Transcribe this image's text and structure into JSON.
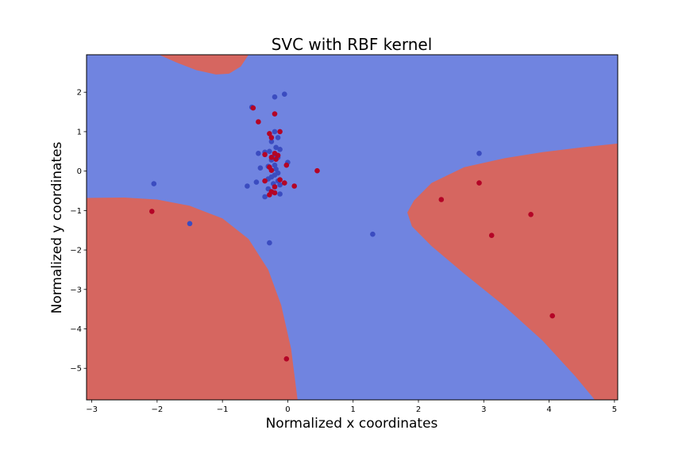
{
  "chart_data": {
    "type": "scatter",
    "title": "SVC with RBF kernel",
    "xlabel": "Normalized x coordinates",
    "ylabel": "Normalized y coordinates",
    "xlim": [
      -3.08,
      5.05
    ],
    "ylim": [
      -5.8,
      2.95
    ],
    "xticks": [
      -3,
      -2,
      -1,
      0,
      1,
      2,
      3,
      4,
      5
    ],
    "yticks": [
      -5,
      -4,
      -3,
      -2,
      -1,
      0,
      1,
      2
    ],
    "grid": false,
    "legend": "none",
    "colors": {
      "region_class_0": "#7084e0",
      "region_class_1": "#d66660",
      "point_class_0": "#3b4cc0",
      "point_class_1": "#b40426"
    },
    "decision_regions": [
      {
        "class": 1,
        "name": "top-left lobe",
        "boundary": [
          [
            -1.97,
            2.95
          ],
          [
            -1.7,
            2.75
          ],
          [
            -1.4,
            2.56
          ],
          [
            -1.1,
            2.45
          ],
          [
            -0.9,
            2.47
          ],
          [
            -0.72,
            2.65
          ],
          [
            -0.6,
            2.95
          ]
        ]
      },
      {
        "class": 1,
        "name": "bottom-left lobe",
        "boundary": [
          [
            -3.08,
            -0.68
          ],
          [
            -2.5,
            -0.67
          ],
          [
            -2.0,
            -0.72
          ],
          [
            -1.5,
            -0.88
          ],
          [
            -1.0,
            -1.2
          ],
          [
            -0.6,
            -1.72
          ],
          [
            -0.3,
            -2.5
          ],
          [
            -0.1,
            -3.4
          ],
          [
            0.05,
            -4.5
          ],
          [
            0.15,
            -5.8
          ],
          [
            -3.08,
            -5.8
          ]
        ]
      },
      {
        "class": 1,
        "name": "right lobe",
        "boundary": [
          [
            5.05,
            0.7
          ],
          [
            4.5,
            0.6
          ],
          [
            3.9,
            0.48
          ],
          [
            3.3,
            0.32
          ],
          [
            2.7,
            0.1
          ],
          [
            2.2,
            -0.3
          ],
          [
            1.93,
            -0.75
          ],
          [
            1.83,
            -1.05
          ],
          [
            1.9,
            -1.4
          ],
          [
            2.2,
            -1.9
          ],
          [
            2.7,
            -2.6
          ],
          [
            3.3,
            -3.4
          ],
          [
            3.9,
            -4.3
          ],
          [
            4.4,
            -5.2
          ],
          [
            4.7,
            -5.8
          ],
          [
            5.05,
            -5.8
          ]
        ]
      }
    ],
    "series": [
      {
        "class": 0,
        "points": [
          [
            -0.55,
            1.62
          ],
          [
            -0.2,
            1.88
          ],
          [
            -0.05,
            1.95
          ],
          [
            -0.2,
            1.0
          ],
          [
            -0.15,
            0.85
          ],
          [
            -0.25,
            0.75
          ],
          [
            -0.18,
            0.6
          ],
          [
            -0.12,
            0.55
          ],
          [
            -0.28,
            0.5
          ],
          [
            -0.45,
            0.45
          ],
          [
            -0.35,
            0.48
          ],
          [
            -0.2,
            0.42
          ],
          [
            -0.15,
            0.35
          ],
          [
            -0.25,
            0.28
          ],
          [
            0.0,
            0.22
          ],
          [
            -0.2,
            0.15
          ],
          [
            -0.3,
            0.12
          ],
          [
            -0.42,
            0.08
          ],
          [
            -0.18,
            0.05
          ],
          [
            -0.15,
            -0.05
          ],
          [
            -0.2,
            -0.1
          ],
          [
            -0.25,
            -0.15
          ],
          [
            -0.3,
            -0.2
          ],
          [
            -0.15,
            -0.25
          ],
          [
            -0.48,
            -0.28
          ],
          [
            -0.62,
            -0.38
          ],
          [
            -0.22,
            -0.32
          ],
          [
            -0.12,
            -0.35
          ],
          [
            -0.3,
            -0.45
          ],
          [
            -0.35,
            -0.65
          ],
          [
            -0.12,
            -0.58
          ],
          [
            -2.05,
            -0.32
          ],
          [
            -1.5,
            -1.33
          ],
          [
            -0.28,
            -1.82
          ],
          [
            1.3,
            -1.6
          ],
          [
            2.93,
            0.45
          ]
        ]
      },
      {
        "class": 1,
        "points": [
          [
            -0.53,
            1.6
          ],
          [
            -0.2,
            1.45
          ],
          [
            -0.45,
            1.25
          ],
          [
            -0.12,
            1.0
          ],
          [
            -0.28,
            0.95
          ],
          [
            -0.25,
            0.85
          ],
          [
            -0.2,
            0.45
          ],
          [
            -0.35,
            0.42
          ],
          [
            -0.15,
            0.4
          ],
          [
            -0.25,
            0.35
          ],
          [
            -0.18,
            0.3
          ],
          [
            -0.02,
            0.15
          ],
          [
            -0.28,
            0.1
          ],
          [
            -0.25,
            0.02
          ],
          [
            0.45,
            0.01
          ],
          [
            -0.12,
            -0.22
          ],
          [
            -0.35,
            -0.25
          ],
          [
            -0.05,
            -0.3
          ],
          [
            0.1,
            -0.38
          ],
          [
            -0.2,
            -0.4
          ],
          [
            -0.25,
            -0.52
          ],
          [
            -0.2,
            -0.55
          ],
          [
            -0.28,
            -0.6
          ],
          [
            -2.08,
            -1.02
          ],
          [
            2.35,
            -0.72
          ],
          [
            2.93,
            -0.3
          ],
          [
            3.72,
            -1.1
          ],
          [
            3.12,
            -1.63
          ],
          [
            4.05,
            -3.67
          ],
          [
            -0.02,
            -4.76
          ]
        ]
      }
    ]
  }
}
